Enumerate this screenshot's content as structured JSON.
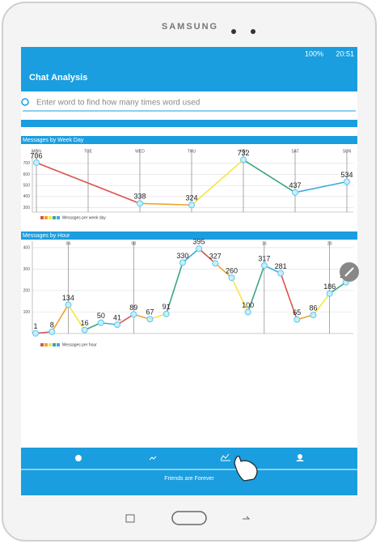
{
  "device": {
    "brand": "SAMSUNG"
  },
  "status_bar": {
    "battery": "100%",
    "time": "20:51"
  },
  "app_bar": {
    "title": "Chat Analysis"
  },
  "search": {
    "placeholder": "Enter word to find how many times word used"
  },
  "chart_data": [
    {
      "type": "line",
      "title": "Messages by Week Day",
      "categories": [
        "MON",
        "TUE",
        "WED",
        "THU",
        "FRI",
        "SAT",
        "SUN"
      ],
      "series": [
        {
          "name": "Messages per week day",
          "colors": [
            "#d9534f",
            "#f0a030",
            "#f5e642",
            "#3aa58a",
            "#3aaed8"
          ],
          "values": [
            706,
            null,
            338,
            324,
            732,
            437,
            534
          ],
          "value_labels": [
            "706",
            null,
            "338",
            "324",
            "732",
            "437",
            "534"
          ]
        }
      ],
      "ylim": [
        260,
        830
      ],
      "yticks": [
        300,
        400,
        500,
        600,
        700
      ],
      "grid": true
    },
    {
      "type": "line",
      "title": "Messages by Hour",
      "x": [
        2,
        3,
        4,
        5,
        6,
        7,
        8,
        9,
        10,
        11,
        12,
        13,
        14,
        15,
        16,
        17,
        18,
        19,
        20,
        21
      ],
      "series": [
        {
          "name": "Messages per hour",
          "colors": [
            "#d9534f",
            "#f0a030",
            "#f5e642",
            "#3aa58a",
            "#3aaed8"
          ],
          "values": [
            1,
            8,
            134,
            16,
            50,
            41,
            89,
            67,
            91,
            330,
            395,
            327,
            260,
            100,
            317,
            281,
            65,
            86,
            186,
            239
          ]
        }
      ],
      "xlim": [
        1.8,
        21.45
      ],
      "xticks": [
        {
          "value": 4,
          "label": "04"
        },
        {
          "value": 8,
          "label": "08"
        },
        16,
        20
      ],
      "ylim": [
        0,
        430
      ],
      "yticks": [
        100,
        200,
        300,
        400
      ],
      "grid": true
    }
  ],
  "footer": {
    "text": "Friends are Forever"
  }
}
